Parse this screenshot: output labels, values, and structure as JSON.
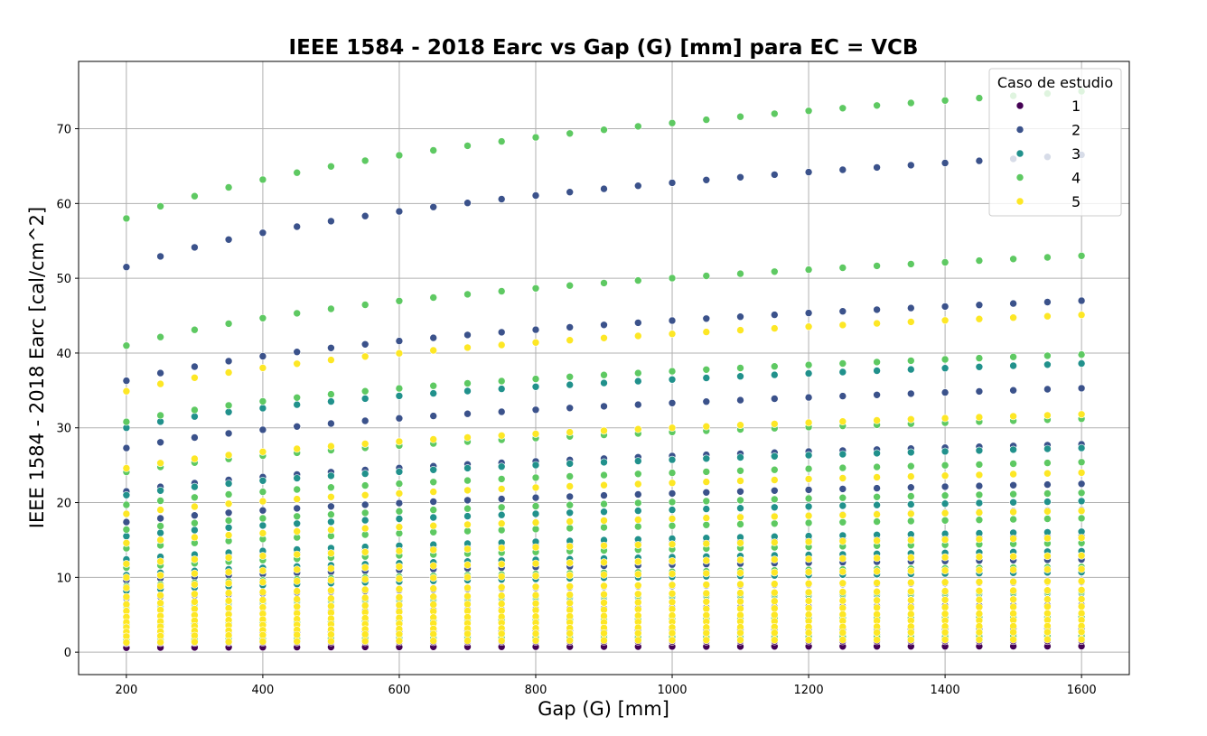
{
  "chart_data": {
    "type": "scatter",
    "title": "IEEE 1584 - 2018 Earc vs Gap (G) [mm] para EC = VCB",
    "xlabel": "Gap (G) [mm]",
    "ylabel": "IEEE 1584 - 2018 Earc [cal/cm^2]",
    "xlim": [
      130,
      1670
    ],
    "ylim": [
      -3,
      79
    ],
    "xticks": [
      200,
      400,
      600,
      800,
      1000,
      1200,
      1400,
      1600
    ],
    "yticks": [
      0,
      10,
      20,
      30,
      40,
      50,
      60,
      70
    ],
    "grid": true,
    "legend": {
      "title": "Caso de estudio",
      "placement": "top-right"
    },
    "x": [
      200,
      250,
      300,
      350,
      400,
      450,
      500,
      550,
      600,
      650,
      700,
      750,
      800,
      850,
      900,
      950,
      1000,
      1050,
      1100,
      1150,
      1200,
      1250,
      1300,
      1350,
      1400,
      1450,
      1500,
      1550,
      1600
    ],
    "series": [
      {
        "name": "1",
        "color": "#440154",
        "curves": [
          {
            "start": 0.6,
            "end": 0.8
          },
          {
            "start": 1.2,
            "end": 1.5
          }
        ]
      },
      {
        "name": "2",
        "color": "#3b528b",
        "curves": [
          {
            "start": 51.5,
            "end": 66.5
          },
          {
            "start": 36.3,
            "end": 47.0
          },
          {
            "start": 27.3,
            "end": 35.3
          },
          {
            "start": 21.5,
            "end": 27.8
          },
          {
            "start": 17.4,
            "end": 22.5
          },
          {
            "start": 14.5,
            "end": 19.0
          },
          {
            "start": 12.0,
            "end": 15.5
          },
          {
            "start": 9.6,
            "end": 12.4
          },
          {
            "start": 7.2,
            "end": 9.4
          },
          {
            "start": 4.8,
            "end": 6.3
          },
          {
            "start": 2.4,
            "end": 3.2
          }
        ]
      },
      {
        "name": "3",
        "color": "#21918c",
        "curves": [
          {
            "start": 30.0,
            "end": 38.6
          },
          {
            "start": 21.0,
            "end": 27.3
          },
          {
            "start": 15.5,
            "end": 20.2
          },
          {
            "start": 12.4,
            "end": 16.1
          },
          {
            "start": 10.3,
            "end": 13.5
          },
          {
            "start": 8.2,
            "end": 10.7
          },
          {
            "start": 6.0,
            "end": 7.9
          },
          {
            "start": 3.8,
            "end": 5.0
          },
          {
            "start": 1.8,
            "end": 2.4
          }
        ]
      },
      {
        "name": "4",
        "color": "#5ec962",
        "curves": [
          {
            "start": 58.0,
            "end": 75.0
          },
          {
            "start": 41.0,
            "end": 53.0
          },
          {
            "start": 30.8,
            "end": 39.8
          },
          {
            "start": 24.1,
            "end": 31.2
          },
          {
            "start": 19.7,
            "end": 25.4
          },
          {
            "start": 16.4,
            "end": 21.3
          },
          {
            "start": 13.9,
            "end": 17.9
          },
          {
            "start": 11.3,
            "end": 14.6
          },
          {
            "start": 8.8,
            "end": 11.4
          },
          {
            "start": 6.2,
            "end": 8.1
          },
          {
            "start": 3.6,
            "end": 4.7
          },
          {
            "start": 1.6,
            "end": 2.1
          }
        ]
      },
      {
        "name": "5",
        "color": "#fde725",
        "curves": [
          {
            "start": 34.9,
            "end": 45.1
          },
          {
            "start": 24.6,
            "end": 31.8
          },
          {
            "start": 18.5,
            "end": 24.0
          },
          {
            "start": 14.6,
            "end": 18.9
          },
          {
            "start": 11.8,
            "end": 15.3
          },
          {
            "start": 10.0,
            "end": 12.9
          },
          {
            "start": 8.6,
            "end": 11.1
          },
          {
            "start": 7.4,
            "end": 9.5
          },
          {
            "start": 6.4,
            "end": 8.3
          },
          {
            "start": 5.5,
            "end": 7.1
          },
          {
            "start": 4.7,
            "end": 6.1
          },
          {
            "start": 4.0,
            "end": 5.2
          },
          {
            "start": 3.3,
            "end": 4.3
          },
          {
            "start": 2.7,
            "end": 3.5
          },
          {
            "start": 2.1,
            "end": 2.7
          },
          {
            "start": 1.3,
            "end": 1.7
          }
        ]
      }
    ]
  }
}
